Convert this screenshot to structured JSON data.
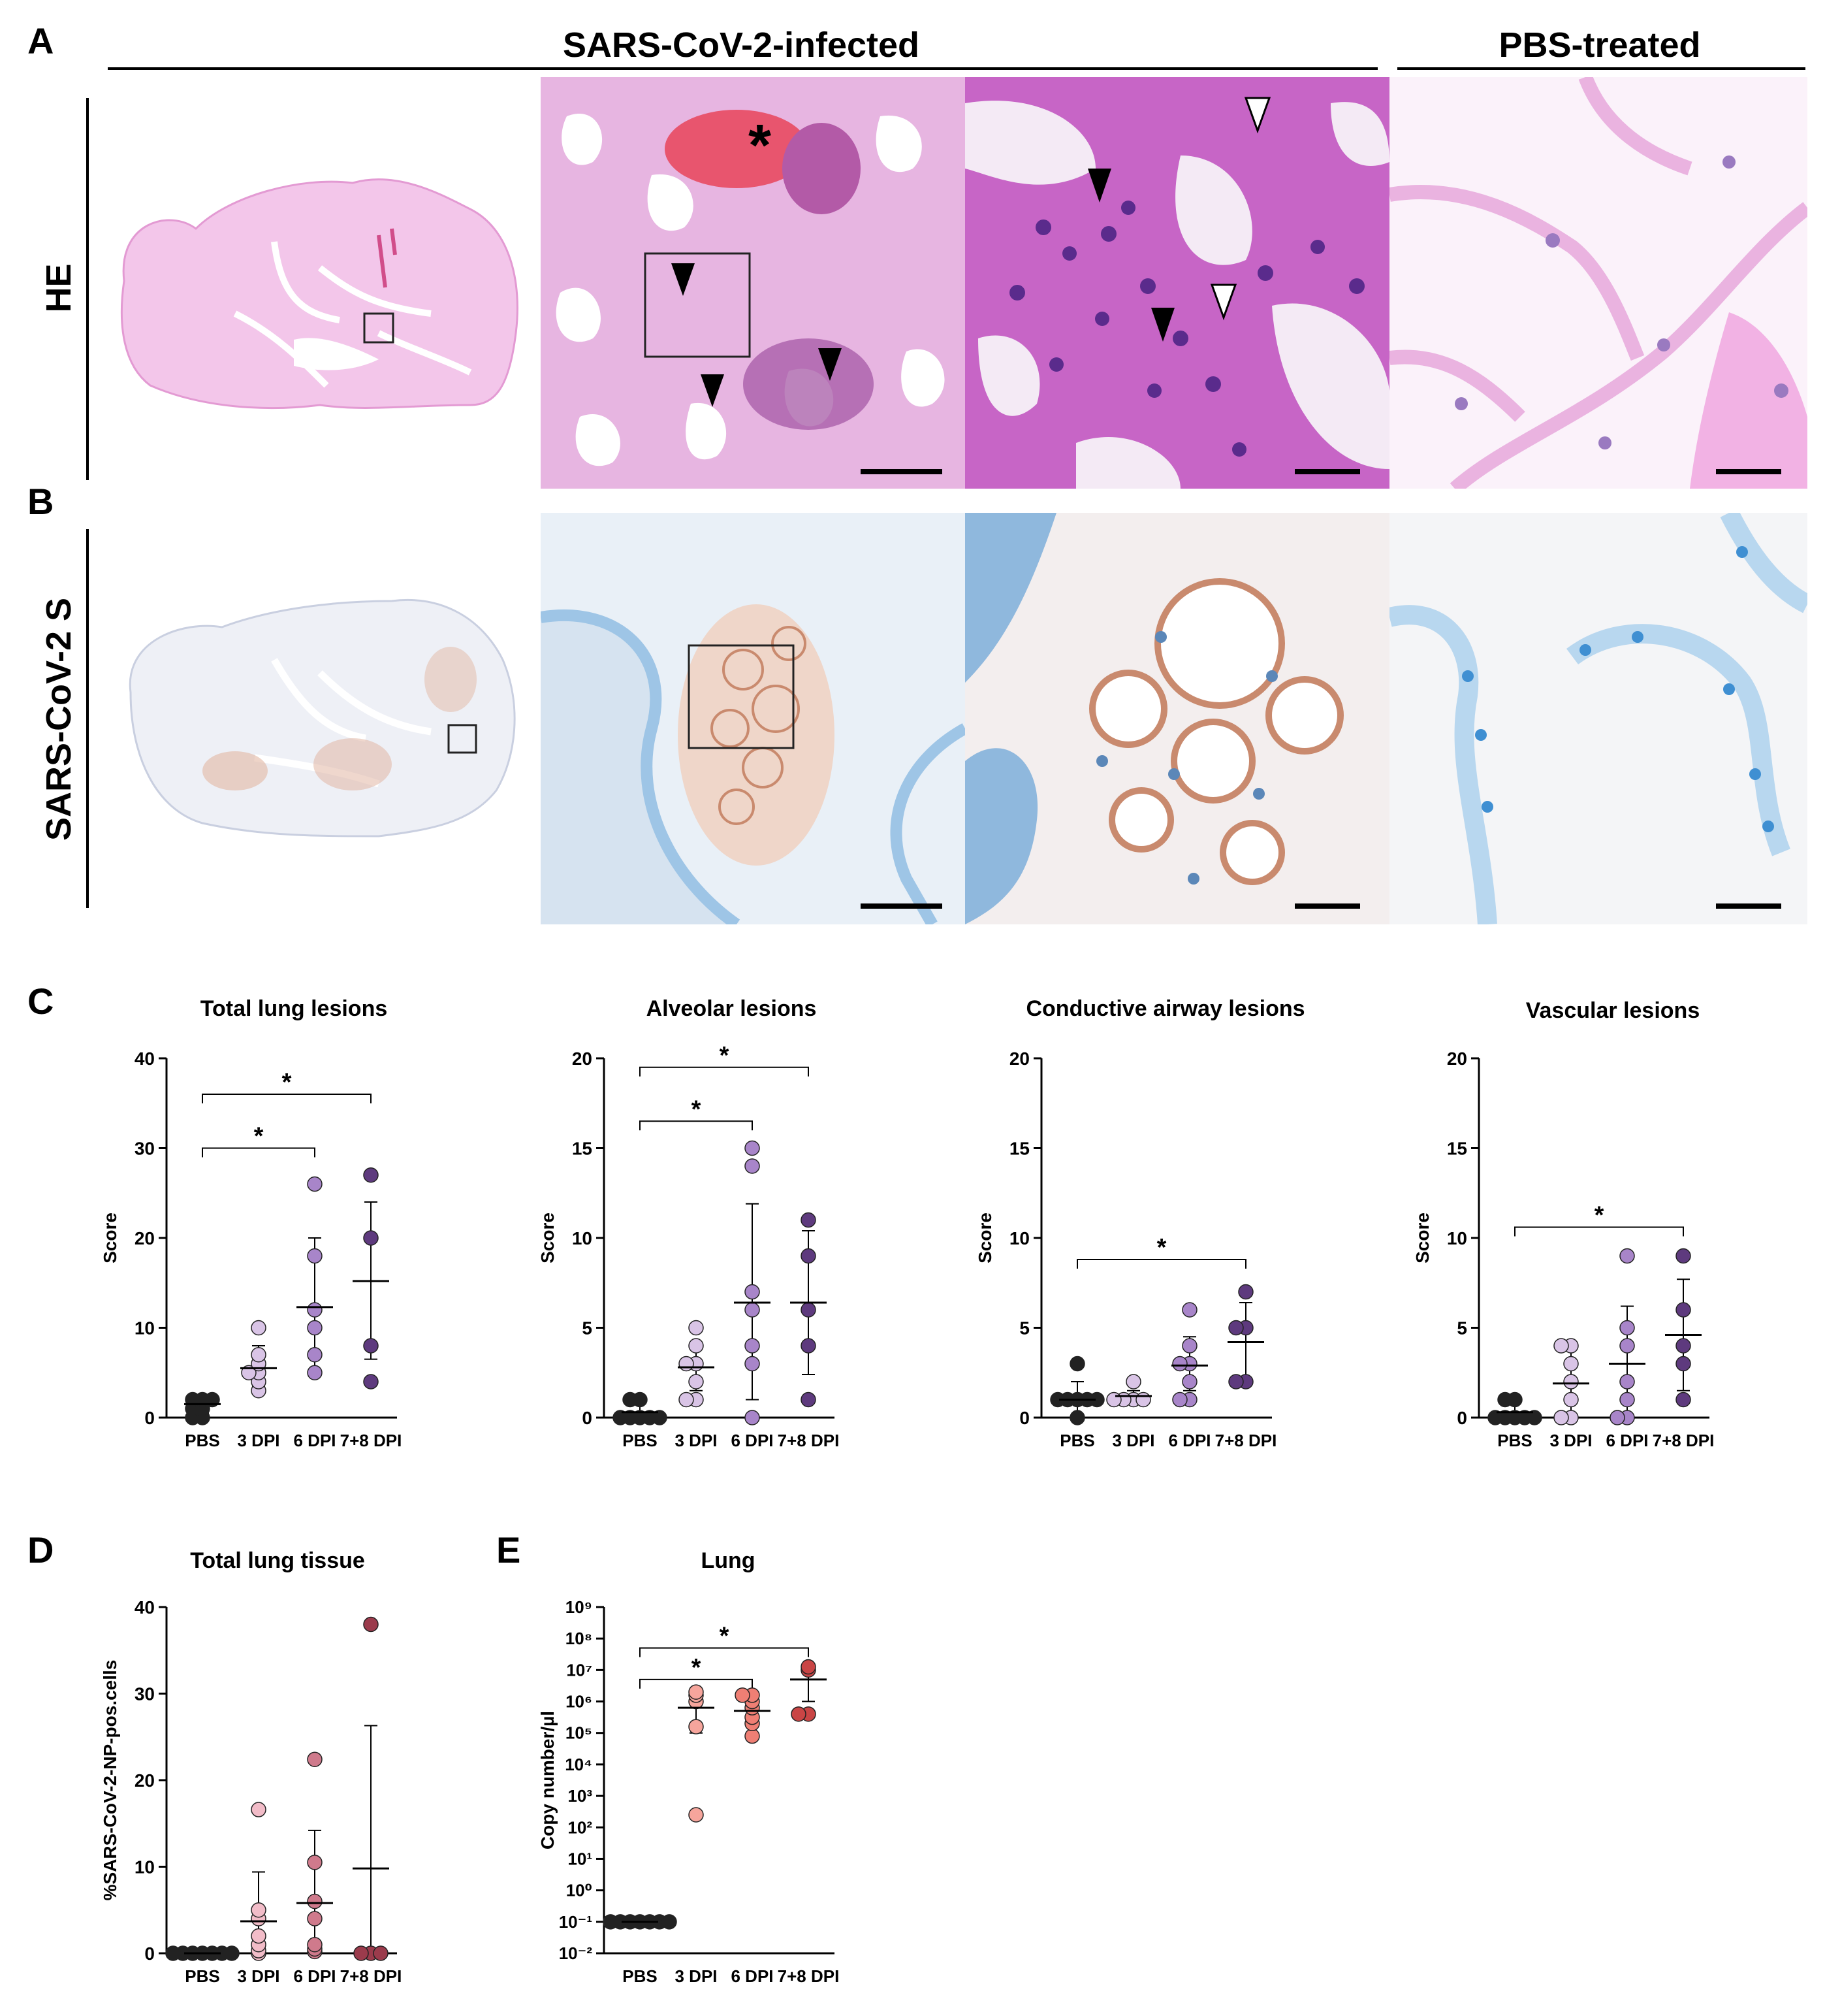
{
  "panel_labels": {
    "a": "A",
    "b": "B",
    "c": "C",
    "d": "D",
    "e": "E"
  },
  "headers": {
    "infected": "SARS-CoV-2-infected",
    "pbs": "PBS-treated"
  },
  "row_labels": {
    "he": "HE",
    "spike": "SARS-CoV-2 S"
  },
  "colors": {
    "he_pink": "#e8a8d8",
    "he_purple": "#7a3f9c",
    "ihc_blue": "#5ba5d8",
    "ihc_brown": "#c98a6e",
    "pbs": "#222222",
    "dpi3": "#d9c4e6",
    "dpi6": "#a885c9",
    "dpi78": "#5e3a7e",
    "d_dpi3": "#f2bcc8",
    "d_dpi6": "#cf7a8c",
    "d_dpi78": "#9b3b4c",
    "e_dpi3": "#f6a59c",
    "e_dpi6": "#ef7f74",
    "e_dpi78": "#c94545"
  },
  "chart_data": [
    {
      "id": "c1",
      "type": "scatter",
      "title": "Total lung lesions",
      "ylabel": "Score",
      "categories": [
        "PBS",
        "3 DPI",
        "6 DPI",
        "7+8 DPI"
      ],
      "ylim": [
        0,
        40
      ],
      "yticks": [
        0,
        10,
        20,
        30,
        40
      ],
      "points": [
        [
          0,
          0,
          1,
          1,
          2,
          2,
          2
        ],
        [
          3,
          4,
          5,
          5,
          6,
          7,
          10
        ],
        [
          5,
          7,
          10,
          12,
          18,
          26
        ],
        [
          4,
          8,
          20,
          27
        ]
      ],
      "means": [
        1.5,
        5.5,
        12.3,
        15.2
      ],
      "sd": [
        [
          0.5,
          2.5
        ],
        [
          3.5,
          8
        ],
        [
          5,
          20
        ],
        [
          6.5,
          24
        ]
      ],
      "sig": [
        {
          "from": 0,
          "to": 2,
          "y": 30,
          "label": "*"
        },
        {
          "from": 0,
          "to": 3,
          "y": 36,
          "label": "*"
        }
      ]
    },
    {
      "id": "c2",
      "type": "scatter",
      "title": "Alveolar lesions",
      "ylabel": "Score",
      "categories": [
        "PBS",
        "3 DPI",
        "6 DPI",
        "7+8 DPI"
      ],
      "ylim": [
        0,
        20
      ],
      "yticks": [
        0,
        5,
        10,
        15,
        20
      ],
      "points": [
        [
          0,
          0,
          0,
          0,
          0,
          1,
          1
        ],
        [
          1,
          1,
          2,
          3,
          3,
          4,
          5
        ],
        [
          0,
          3,
          4,
          6,
          7,
          14,
          15
        ],
        [
          1,
          4,
          6,
          9,
          11
        ]
      ],
      "means": [
        0.3,
        2.8,
        6.4,
        6.4
      ],
      "sd": [
        [
          0,
          0.8
        ],
        [
          1.5,
          4
        ],
        [
          1,
          11.9
        ],
        [
          2.4,
          10.4
        ]
      ],
      "sig": [
        {
          "from": 0,
          "to": 2,
          "y": 16.5,
          "label": "*"
        },
        {
          "from": 0,
          "to": 3,
          "y": 19.5,
          "label": "*"
        }
      ]
    },
    {
      "id": "c3",
      "type": "scatter",
      "title": "Conductive airway lesions",
      "ylabel": "Score",
      "categories": [
        "PBS",
        "3 DPI",
        "6 DPI",
        "7+8 DPI"
      ],
      "ylim": [
        0,
        20
      ],
      "yticks": [
        0,
        5,
        10,
        15,
        20
      ],
      "points": [
        [
          0,
          1,
          1,
          1,
          1,
          1,
          3
        ],
        [
          1,
          1,
          1,
          1,
          2
        ],
        [
          1,
          1,
          2,
          3,
          3,
          4,
          6
        ],
        [
          2,
          2,
          5,
          5,
          7
        ]
      ],
      "means": [
        1.0,
        1.2,
        2.9,
        4.2
      ],
      "sd": [
        [
          0.2,
          2
        ],
        [
          1,
          1.5
        ],
        [
          1.5,
          4.5
        ],
        [
          2,
          6.4
        ]
      ],
      "sig": [
        {
          "from": 0,
          "to": 3,
          "y": 8.8,
          "label": "*"
        }
      ]
    },
    {
      "id": "c4",
      "type": "scatter",
      "title": "Vascular lesions",
      "ylabel": "Score",
      "categories": [
        "PBS",
        "3 DPI",
        "6 DPI",
        "7+8 DPI"
      ],
      "ylim": [
        0,
        20
      ],
      "yticks": [
        0,
        5,
        10,
        15,
        20
      ],
      "points": [
        [
          0,
          0,
          0,
          0,
          0,
          1,
          1
        ],
        [
          0,
          0,
          1,
          2,
          3,
          4,
          4
        ],
        [
          0,
          0,
          1,
          2,
          4,
          5,
          9
        ],
        [
          1,
          3,
          4,
          6,
          9
        ]
      ],
      "means": [
        0.3,
        1.9,
        3.0,
        4.6
      ],
      "sd": [
        [
          0,
          0.8
        ],
        [
          0,
          4
        ],
        [
          0,
          6.2
        ],
        [
          1.5,
          7.7
        ]
      ],
      "sig": [
        {
          "from": 0,
          "to": 3,
          "y": 10.6,
          "label": "*"
        }
      ]
    },
    {
      "id": "d",
      "type": "scatter",
      "title": "Total lung tissue",
      "ylabel": "%SARS-CoV-2-NP-pos.cells",
      "categories": [
        "PBS",
        "3 DPI",
        "6 DPI",
        "7+8 DPI"
      ],
      "ylim": [
        0,
        40
      ],
      "yticks": [
        0,
        10,
        20,
        30,
        40
      ],
      "points": [
        [
          0,
          0,
          0,
          0,
          0,
          0,
          0
        ],
        [
          0,
          0.3,
          1,
          2,
          4,
          5,
          16.6
        ],
        [
          0.2,
          0.5,
          1,
          4,
          6,
          10.5,
          22.4
        ],
        [
          0,
          0,
          0,
          38
        ]
      ],
      "means": [
        0,
        3.7,
        5.8,
        9.8
      ],
      "sd": [
        [
          0,
          0
        ],
        [
          0,
          9.4
        ],
        [
          0,
          14.2
        ],
        [
          0,
          26.3
        ]
      ],
      "sig": []
    },
    {
      "id": "e",
      "type": "scatter",
      "title": "Lung",
      "ylabel": "Copy number/µl",
      "log": true,
      "categories": [
        "PBS",
        "3 DPI",
        "6 DPI",
        "7+8 DPI"
      ],
      "ylim": [
        -2,
        9
      ],
      "ytick_labels": [
        "10⁻²",
        "10⁻¹",
        "10⁰",
        "10¹",
        "10²",
        "10³",
        "10⁴",
        "10⁵",
        "10⁶",
        "10⁷",
        "10⁸",
        "10⁹"
      ],
      "points": [
        [
          -1,
          -1,
          -1,
          -1,
          -1,
          -1,
          -1
        ],
        [
          2.4,
          5.2,
          6.0,
          6.2,
          6.3
        ],
        [
          4.9,
          5.3,
          5.5,
          5.8,
          6.0,
          6.2,
          6.2
        ],
        [
          5.6,
          5.6,
          7.0,
          7.1
        ]
      ],
      "means": [
        -1,
        5.8,
        5.7,
        6.7
      ],
      "sd": [
        [
          -1,
          -1
        ],
        [
          5.0,
          6.3
        ],
        [
          5.2,
          6.1
        ],
        [
          6.0,
          7.1
        ]
      ],
      "sig": [
        {
          "from": 0,
          "to": 2,
          "y": 6.7,
          "label": "*"
        },
        {
          "from": 0,
          "to": 3,
          "y": 7.7,
          "label": "*"
        }
      ]
    }
  ]
}
